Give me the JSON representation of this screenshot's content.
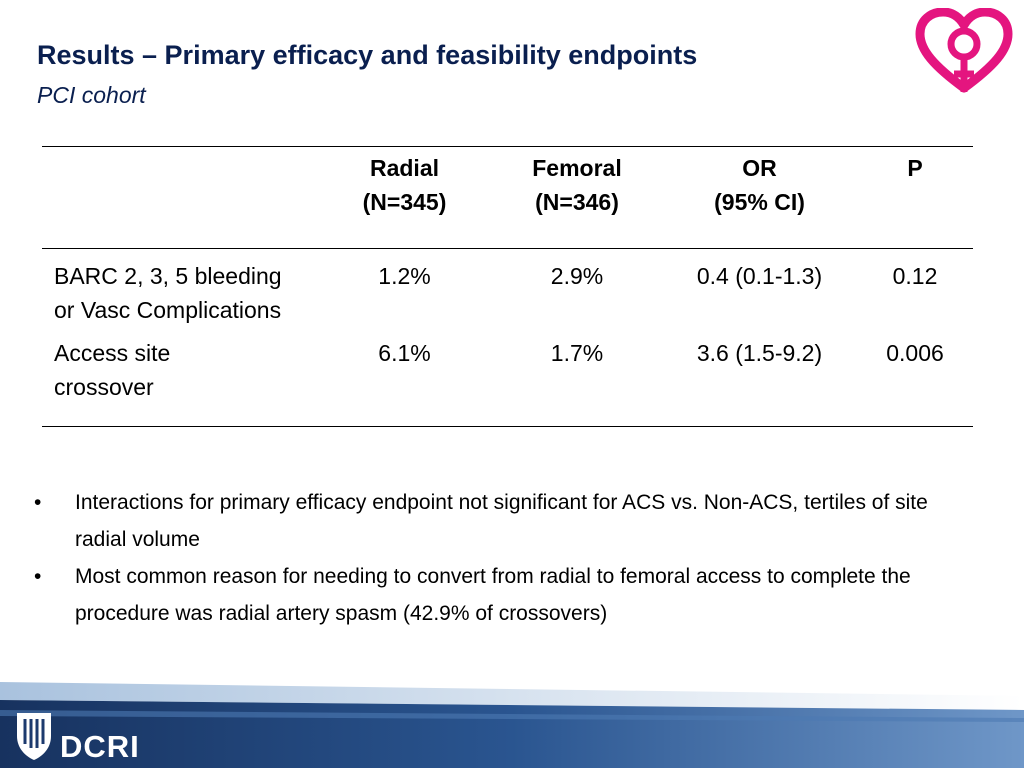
{
  "slide": {
    "title": "Results – Primary efficacy and feasibility endpoints",
    "subtitle": "PCI cohort"
  },
  "table": {
    "headers": [
      {
        "line1": "",
        "line2": ""
      },
      {
        "line1": "Radial",
        "line2": "(N=345)"
      },
      {
        "line1": "Femoral",
        "line2": "(N=346)"
      },
      {
        "line1": "OR",
        "line2": "(95% CI)"
      },
      {
        "line1": "P",
        "line2": ""
      }
    ],
    "rows": [
      {
        "label": "BARC 2, 3, 5 bleeding or Vasc Complications",
        "radial": "1.2%",
        "femoral": "2.9%",
        "or": "0.4 (0.1-1.3)",
        "p": "0.12"
      },
      {
        "label": "Access site crossover",
        "radial": "6.1%",
        "femoral": "1.7%",
        "or": "3.6 (1.5-9.2)",
        "p": "0.006"
      }
    ]
  },
  "bullets": [
    "Interactions for primary efficacy endpoint not significant for ACS vs. Non-ACS, tertiles of site radial volume",
    "Most common reason for needing to convert from radial to femoral access to complete the procedure was radial artery spasm (42.9% of crossovers)"
  ],
  "bullet_symbol": "•",
  "footer": {
    "org": "DCRI",
    "logo_icon": "duke-shield-icon",
    "band_colors": [
      "#1c3a6e",
      "#2f5d9a",
      "#8fb1d6",
      "#d9e3ef"
    ]
  },
  "header_logo": {
    "icon": "heart-female-symbol-icon",
    "color": "#e4157f"
  },
  "colors": {
    "title": "#0a1f4f",
    "rule": "#000000"
  }
}
